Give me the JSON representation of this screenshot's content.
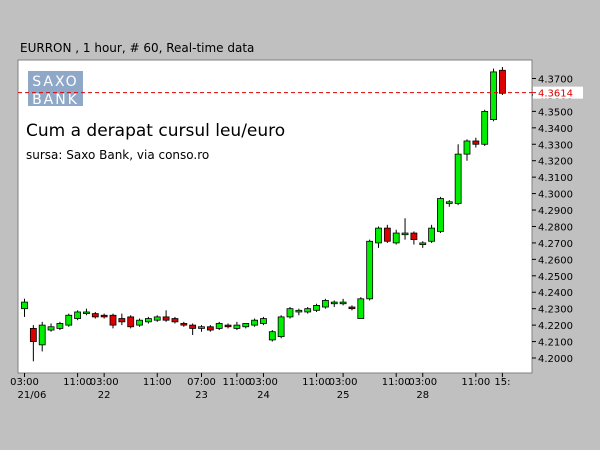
{
  "header": {
    "text": "EURRON , 1 hour, # 60, Real-time data"
  },
  "logo": {
    "line1": "SAXO",
    "line2": "BANK"
  },
  "colors": {
    "up": "#00ee00",
    "down": "#dd0000",
    "wick": "#000000",
    "current_line": "#dd0000",
    "logo_bg": "#8fa8c8",
    "plot_bg": "#ffffff"
  },
  "chart_data": {
    "type": "candlestick",
    "title": "Cum a derapat cursul leu/euro",
    "subtitle": "sursa: Saxo Bank, via conso.ro",
    "ylim": [
      4.195,
      4.38
    ],
    "yticks": [
      "4.2000",
      "4.2100",
      "4.2200",
      "4.2300",
      "4.2400",
      "4.2500",
      "4.2600",
      "4.2700",
      "4.2800",
      "4.2900",
      "4.3000",
      "4.3100",
      "4.3200",
      "4.3300",
      "4.3400",
      "4.3500",
      "4.3600",
      "4.3700"
    ],
    "current_price": "4.3614",
    "xticks": [
      {
        "index": 0,
        "time": "03:00",
        "day": "21/06"
      },
      {
        "index": 6,
        "time": "11:00",
        "day": ""
      },
      {
        "index": 9,
        "time": "03:00",
        "day": "22"
      },
      {
        "index": 15,
        "time": "11:00",
        "day": ""
      },
      {
        "index": 20,
        "time": "07:00",
        "day": "23"
      },
      {
        "index": 24,
        "time": "11:00",
        "day": ""
      },
      {
        "index": 27,
        "time": "03:00",
        "day": "24"
      },
      {
        "index": 33,
        "time": "11:00",
        "day": ""
      },
      {
        "index": 36,
        "time": "03:00",
        "day": "25"
      },
      {
        "index": 42,
        "time": "11:00",
        "day": ""
      },
      {
        "index": 45,
        "time": "03:00",
        "day": "28"
      },
      {
        "index": 51,
        "time": "11:00",
        "day": ""
      },
      {
        "index": 54,
        "time": "15:",
        "day": ""
      }
    ],
    "candles": [
      {
        "o": 4.23,
        "h": 4.236,
        "l": 4.225,
        "c": 4.234
      },
      {
        "o": 4.218,
        "h": 4.22,
        "l": 4.198,
        "c": 4.21
      },
      {
        "o": 4.208,
        "h": 4.222,
        "l": 4.204,
        "c": 4.22
      },
      {
        "o": 4.217,
        "h": 4.221,
        "l": 4.216,
        "c": 4.219
      },
      {
        "o": 4.218,
        "h": 4.222,
        "l": 4.217,
        "c": 4.221
      },
      {
        "o": 4.22,
        "h": 4.227,
        "l": 4.219,
        "c": 4.226
      },
      {
        "o": 4.224,
        "h": 4.229,
        "l": 4.223,
        "c": 4.228
      },
      {
        "o": 4.227,
        "h": 4.23,
        "l": 4.226,
        "c": 4.228
      },
      {
        "o": 4.227,
        "h": 4.228,
        "l": 4.224,
        "c": 4.225
      },
      {
        "o": 4.226,
        "h": 4.227,
        "l": 4.224,
        "c": 4.225
      },
      {
        "o": 4.226,
        "h": 4.227,
        "l": 4.218,
        "c": 4.22
      },
      {
        "o": 4.224,
        "h": 4.227,
        "l": 4.22,
        "c": 4.222
      },
      {
        "o": 4.225,
        "h": 4.226,
        "l": 4.218,
        "c": 4.219
      },
      {
        "o": 4.22,
        "h": 4.224,
        "l": 4.219,
        "c": 4.223
      },
      {
        "o": 4.222,
        "h": 4.225,
        "l": 4.221,
        "c": 4.224
      },
      {
        "o": 4.223,
        "h": 4.226,
        "l": 4.222,
        "c": 4.225
      },
      {
        "o": 4.225,
        "h": 4.229,
        "l": 4.222,
        "c": 4.223
      },
      {
        "o": 4.224,
        "h": 4.225,
        "l": 4.221,
        "c": 4.222
      },
      {
        "o": 4.221,
        "h": 4.222,
        "l": 4.219,
        "c": 4.22
      },
      {
        "o": 4.22,
        "h": 4.221,
        "l": 4.214,
        "c": 4.218
      },
      {
        "o": 4.218,
        "h": 4.22,
        "l": 4.216,
        "c": 4.219
      },
      {
        "o": 4.219,
        "h": 4.22,
        "l": 4.216,
        "c": 4.217
      },
      {
        "o": 4.218,
        "h": 4.222,
        "l": 4.217,
        "c": 4.221
      },
      {
        "o": 4.22,
        "h": 4.221,
        "l": 4.218,
        "c": 4.219
      },
      {
        "o": 4.218,
        "h": 4.222,
        "l": 4.217,
        "c": 4.22
      },
      {
        "o": 4.219,
        "h": 4.221,
        "l": 4.218,
        "c": 4.221
      },
      {
        "o": 4.22,
        "h": 4.224,
        "l": 4.219,
        "c": 4.223
      },
      {
        "o": 4.221,
        "h": 4.225,
        "l": 4.22,
        "c": 4.224
      },
      {
        "o": 4.211,
        "h": 4.217,
        "l": 4.21,
        "c": 4.216
      },
      {
        "o": 4.213,
        "h": 4.226,
        "l": 4.212,
        "c": 4.225
      },
      {
        "o": 4.225,
        "h": 4.231,
        "l": 4.224,
        "c": 4.23
      },
      {
        "o": 4.228,
        "h": 4.23,
        "l": 4.226,
        "c": 4.229
      },
      {
        "o": 4.228,
        "h": 4.231,
        "l": 4.227,
        "c": 4.23
      },
      {
        "o": 4.229,
        "h": 4.233,
        "l": 4.228,
        "c": 4.232
      },
      {
        "o": 4.231,
        "h": 4.236,
        "l": 4.23,
        "c": 4.235
      },
      {
        "o": 4.233,
        "h": 4.235,
        "l": 4.231,
        "c": 4.234
      },
      {
        "o": 4.233,
        "h": 4.236,
        "l": 4.232,
        "c": 4.234
      },
      {
        "o": 4.231,
        "h": 4.232,
        "l": 4.229,
        "c": 4.23
      },
      {
        "o": 4.224,
        "h": 4.237,
        "l": 4.224,
        "c": 4.236
      },
      {
        "o": 4.236,
        "h": 4.272,
        "l": 4.235,
        "c": 4.271
      },
      {
        "o": 4.27,
        "h": 4.28,
        "l": 4.267,
        "c": 4.279
      },
      {
        "o": 4.279,
        "h": 4.281,
        "l": 4.27,
        "c": 4.271
      },
      {
        "o": 4.27,
        "h": 4.278,
        "l": 4.269,
        "c": 4.276
      },
      {
        "o": 4.275,
        "h": 4.285,
        "l": 4.272,
        "c": 4.276
      },
      {
        "o": 4.276,
        "h": 4.277,
        "l": 4.269,
        "c": 4.272
      },
      {
        "o": 4.269,
        "h": 4.271,
        "l": 4.267,
        "c": 4.27
      },
      {
        "o": 4.271,
        "h": 4.281,
        "l": 4.27,
        "c": 4.279
      },
      {
        "o": 4.277,
        "h": 4.298,
        "l": 4.276,
        "c": 4.297
      },
      {
        "o": 4.294,
        "h": 4.296,
        "l": 4.292,
        "c": 4.295
      },
      {
        "o": 4.294,
        "h": 4.33,
        "l": 4.293,
        "c": 4.324
      },
      {
        "o": 4.324,
        "h": 4.333,
        "l": 4.32,
        "c": 4.332
      },
      {
        "o": 4.332,
        "h": 4.334,
        "l": 4.328,
        "c": 4.33
      },
      {
        "o": 4.33,
        "h": 4.351,
        "l": 4.329,
        "c": 4.35
      },
      {
        "o": 4.345,
        "h": 4.376,
        "l": 4.344,
        "c": 4.374
      },
      {
        "o": 4.375,
        "h": 4.377,
        "l": 4.36,
        "c": 4.361
      }
    ]
  }
}
